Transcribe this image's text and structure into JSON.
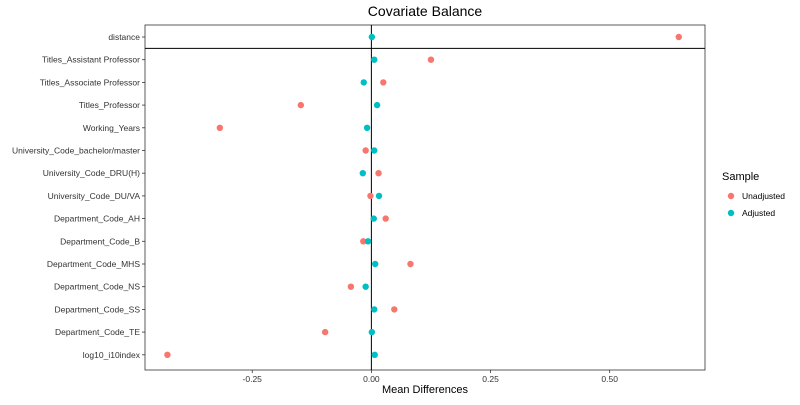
{
  "chart_data": {
    "type": "scatter",
    "title": "Covariate Balance",
    "xlabel": "Mean Differences",
    "ylabel": "",
    "xlim": [
      -0.475,
      0.7
    ],
    "x_ticks": [
      -0.25,
      0.0,
      0.25,
      0.5
    ],
    "x_tick_labels": [
      "-0.25",
      "0.00",
      "0.25",
      "0.50"
    ],
    "reference_line_x": 0,
    "separator_after": "distance",
    "grid": false,
    "legend": {
      "title": "Sample",
      "placement": "right"
    },
    "categories": [
      "distance",
      "Titles_Assistant Professor",
      "Titles_Associate Professor",
      "Titles_Professor",
      "Working_Years",
      "University_Code_bachelor/master",
      "University_Code_DRU(H)",
      "University_Code_DU/VA",
      "Department_Code_AH",
      "Department_Code_B",
      "Department_Code_MHS",
      "Department_Code_NS",
      "Department_Code_SS",
      "Department_Code_TE",
      "log10_i10index"
    ],
    "series": [
      {
        "name": "Unadjusted",
        "color": "#F8766D",
        "values": [
          0.645,
          0.125,
          0.025,
          -0.148,
          -0.318,
          -0.012,
          0.015,
          -0.002,
          0.03,
          -0.017,
          0.082,
          -0.043,
          0.048,
          -0.097,
          -0.428
        ]
      },
      {
        "name": "Adjusted",
        "color": "#00BFC4",
        "values": [
          0.001,
          0.006,
          -0.016,
          0.012,
          -0.009,
          0.006,
          -0.018,
          0.016,
          0.005,
          -0.007,
          0.008,
          -0.012,
          0.006,
          0.001,
          0.007
        ]
      }
    ]
  }
}
